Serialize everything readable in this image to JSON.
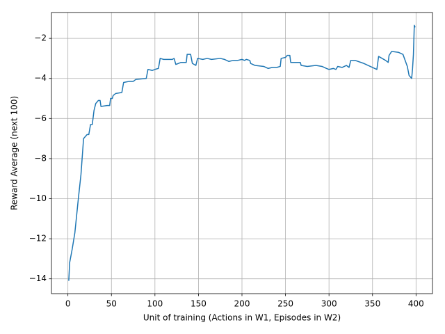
{
  "chart_data": {
    "type": "line",
    "xlabel": "Unit of training (Actions in W1, Episodes in W2)",
    "ylabel": "Reward Average (next 100)",
    "x": [
      1,
      2,
      5,
      8,
      12,
      15,
      18,
      22,
      24,
      26,
      28,
      30,
      32,
      35,
      37,
      38,
      45,
      48,
      49,
      51,
      52,
      55,
      62,
      64,
      70,
      75,
      78,
      90,
      92,
      97,
      100,
      104,
      106,
      110,
      120,
      122,
      124,
      130,
      136,
      137,
      141,
      143,
      147,
      149,
      155,
      160,
      165,
      175,
      180,
      185,
      190,
      195,
      200,
      203,
      205,
      209,
      210,
      215,
      225,
      230,
      235,
      240,
      244,
      245,
      250,
      252,
      255,
      256,
      265,
      267,
      268,
      275,
      285,
      292,
      297,
      300,
      305,
      308,
      310,
      315,
      320,
      323,
      325,
      330,
      340,
      345,
      350,
      355,
      357,
      365,
      368,
      369,
      372,
      380,
      385,
      390,
      392,
      395,
      396,
      397,
      398,
      399
    ],
    "series": [
      {
        "name": "reward",
        "color": "#1f77b4",
        "values": [
          -14.1,
          -13.2,
          -12.5,
          -11.7,
          -10.0,
          -8.8,
          -7.0,
          -6.8,
          -6.8,
          -6.3,
          -6.3,
          -5.6,
          -5.25,
          -5.1,
          -5.1,
          -5.4,
          -5.35,
          -5.35,
          -5.0,
          -5.0,
          -4.85,
          -4.75,
          -4.7,
          -4.2,
          -4.15,
          -4.15,
          -4.05,
          -4.0,
          -3.55,
          -3.6,
          -3.55,
          -3.5,
          -3.0,
          -3.05,
          -3.05,
          -3.0,
          -3.3,
          -3.2,
          -3.2,
          -2.8,
          -2.8,
          -3.25,
          -3.35,
          -3.0,
          -3.05,
          -3.0,
          -3.05,
          -3.0,
          -3.05,
          -3.15,
          -3.1,
          -3.1,
          -3.05,
          -3.1,
          -3.05,
          -3.1,
          -3.25,
          -3.35,
          -3.4,
          -3.5,
          -3.45,
          -3.45,
          -3.4,
          -3.0,
          -2.95,
          -2.85,
          -2.85,
          -3.2,
          -3.2,
          -3.2,
          -3.35,
          -3.4,
          -3.35,
          -3.4,
          -3.5,
          -3.55,
          -3.5,
          -3.55,
          -3.4,
          -3.45,
          -3.35,
          -3.45,
          -3.1,
          -3.1,
          -3.25,
          -3.35,
          -3.45,
          -3.55,
          -2.9,
          -3.1,
          -3.2,
          -2.85,
          -2.65,
          -2.7,
          -2.8,
          -3.4,
          -3.85,
          -4.0,
          -3.5,
          -2.8,
          -1.35,
          -1.45
        ]
      }
    ],
    "xlim": [
      -18.9,
      418.9
    ],
    "ylim": [
      -14.74,
      -0.71
    ],
    "xticks": [
      0,
      50,
      100,
      150,
      200,
      250,
      300,
      350,
      400
    ],
    "yticks": [
      {
        "value": -14,
        "label": "−14"
      },
      {
        "value": -12,
        "label": "−12"
      },
      {
        "value": -10,
        "label": "−10"
      },
      {
        "value": -8,
        "label": "−8"
      },
      {
        "value": -6,
        "label": "−6"
      },
      {
        "value": -4,
        "label": "−4"
      },
      {
        "value": -2,
        "label": "−2"
      }
    ],
    "grid": true
  }
}
